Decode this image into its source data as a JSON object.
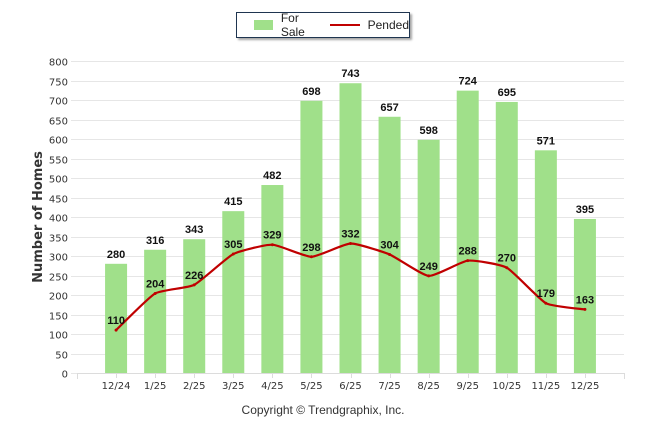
{
  "chart_data": {
    "type": "bar",
    "title": "",
    "xlabel": "",
    "ylabel": "Number of Homes",
    "ylim": [
      0,
      800
    ],
    "yticks": [
      0,
      50,
      100,
      150,
      200,
      250,
      300,
      350,
      400,
      450,
      500,
      550,
      600,
      650,
      700,
      750,
      800
    ],
    "grid": true,
    "legend_position": "top-center",
    "categories": [
      "12/24",
      "1/25",
      "2/25",
      "3/25",
      "4/25",
      "5/25",
      "6/25",
      "7/25",
      "8/25",
      "9/25",
      "10/25",
      "11/25",
      "12/25"
    ],
    "series": [
      {
        "name": "For Sale",
        "type": "bar",
        "color": "#a0e08a",
        "values": [
          280,
          316,
          343,
          415,
          482,
          698,
          743,
          657,
          598,
          724,
          695,
          571,
          395
        ]
      },
      {
        "name": "Pended",
        "type": "line",
        "color": "#c00000",
        "values": [
          110,
          204,
          226,
          305,
          329,
          298,
          332,
          304,
          249,
          288,
          270,
          179,
          163
        ]
      }
    ]
  },
  "legend": {
    "items": [
      {
        "label": "For Sale",
        "color": "#a0e08a"
      },
      {
        "label": "Pended",
        "color": "#c00000"
      }
    ]
  },
  "footer": {
    "copyright": "Copyright © Trendgraphix, Inc."
  }
}
